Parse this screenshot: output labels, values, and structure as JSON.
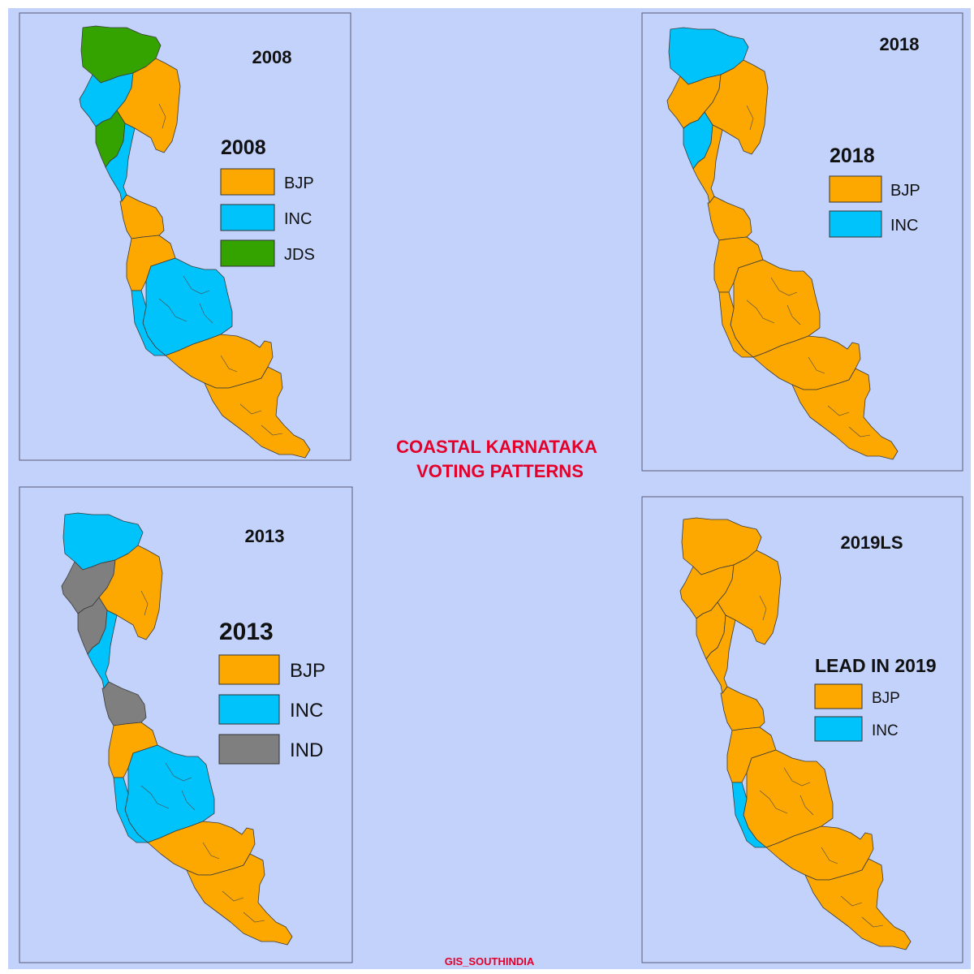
{
  "colors": {
    "background": "#c2d2fb",
    "frame": "#5a5a7a",
    "BJP": "#fda800",
    "INC": "#00c3fb",
    "JDS": "#34a300",
    "IND": "#7f7f7f",
    "title_red": "#e4002b"
  },
  "center_title": {
    "line1": "COASTAL KARNATAKA",
    "line2": "VOTING PATTERNS"
  },
  "credit": "GIS_SOUTHINDIA",
  "panels": [
    {
      "id": "2008",
      "title": "2008",
      "legend_title": "2008",
      "legend": [
        {
          "party": "BJP",
          "label": "BJP"
        },
        {
          "party": "INC",
          "label": "INC"
        },
        {
          "party": "JDS",
          "label": "JDS"
        }
      ],
      "regions_party": [
        "JDS",
        "INC",
        "BJP",
        "JDS",
        "INC",
        "BJP",
        "BJP",
        "INC",
        "INC",
        "BJP",
        "BJP"
      ]
    },
    {
      "id": "2018",
      "title": "2018",
      "legend_title": "2018",
      "legend": [
        {
          "party": "BJP",
          "label": "BJP"
        },
        {
          "party": "INC",
          "label": "INC"
        }
      ],
      "regions_party": [
        "INC",
        "BJP",
        "BJP",
        "INC",
        "BJP",
        "BJP",
        "BJP",
        "BJP",
        "BJP",
        "BJP",
        "BJP"
      ]
    },
    {
      "id": "2013",
      "title": "2013",
      "legend_title": "2013",
      "legend": [
        {
          "party": "BJP",
          "label": "BJP"
        },
        {
          "party": "INC",
          "label": "INC"
        },
        {
          "party": "IND",
          "label": "IND"
        }
      ],
      "regions_party": [
        "INC",
        "IND",
        "BJP",
        "IND",
        "INC",
        "IND",
        "BJP",
        "INC",
        "INC",
        "BJP",
        "BJP"
      ]
    },
    {
      "id": "2019LS",
      "title": "2019LS",
      "legend_title": "LEAD IN 2019",
      "legend": [
        {
          "party": "BJP",
          "label": "BJP"
        },
        {
          "party": "INC",
          "label": "INC"
        }
      ],
      "regions_party": [
        "BJP",
        "BJP",
        "BJP",
        "BJP",
        "BJP",
        "BJP",
        "BJP",
        "BJP",
        "INC",
        "BJP",
        "BJP"
      ]
    }
  ]
}
